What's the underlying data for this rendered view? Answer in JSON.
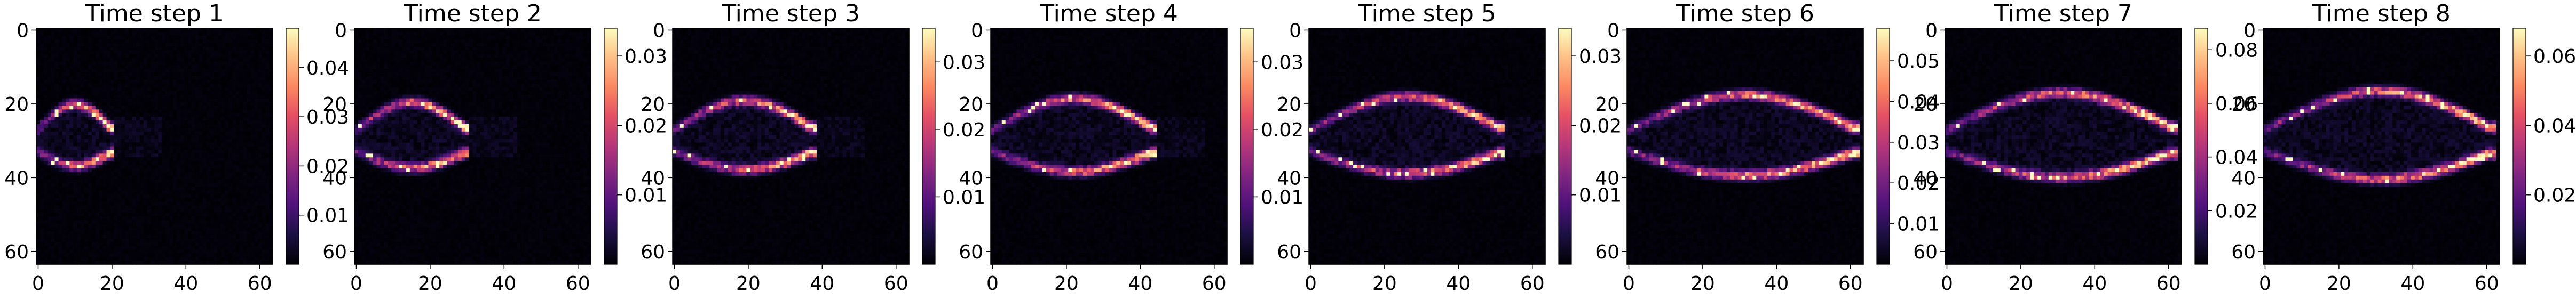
{
  "figure": {
    "colormap": "magma",
    "background": "#ffffff"
  },
  "chart_data": [
    {
      "type": "heatmap",
      "title": "Time step 1",
      "x_ticks": [
        "0",
        "20",
        "40",
        "60"
      ],
      "y_ticks": [
        "0",
        "20",
        "40",
        "60"
      ],
      "grid_size": 64,
      "colorbar_ticks": [
        "0.01",
        "0.02",
        "0.03",
        "0.04"
      ],
      "colorbar_range": [
        0,
        0.048
      ]
    },
    {
      "type": "heatmap",
      "title": "Time step 2",
      "x_ticks": [
        "0",
        "20",
        "40",
        "60"
      ],
      "y_ticks": [
        "0",
        "20",
        "40",
        "60"
      ],
      "grid_size": 64,
      "colorbar_ticks": [
        "0.01",
        "0.02",
        "0.03"
      ],
      "colorbar_range": [
        0,
        0.034
      ]
    },
    {
      "type": "heatmap",
      "title": "Time step 3",
      "x_ticks": [
        "0",
        "20",
        "40",
        "60"
      ],
      "y_ticks": [
        "0",
        "20",
        "40",
        "60"
      ],
      "grid_size": 64,
      "colorbar_ticks": [
        "0.01",
        "0.02",
        "0.03"
      ],
      "colorbar_range": [
        0,
        0.035
      ]
    },
    {
      "type": "heatmap",
      "title": "Time step 4",
      "x_ticks": [
        "0",
        "20",
        "40",
        "60"
      ],
      "y_ticks": [
        "0",
        "20",
        "40",
        "60"
      ],
      "grid_size": 64,
      "colorbar_ticks": [
        "0.01",
        "0.02",
        "0.03"
      ],
      "colorbar_range": [
        0,
        0.035
      ]
    },
    {
      "type": "heatmap",
      "title": "Time step 5",
      "x_ticks": [
        "0",
        "20",
        "40",
        "60"
      ],
      "y_ticks": [
        "0",
        "20",
        "40",
        "60"
      ],
      "grid_size": 64,
      "colorbar_ticks": [
        "0.01",
        "0.02",
        "0.03"
      ],
      "colorbar_range": [
        0,
        0.034
      ]
    },
    {
      "type": "heatmap",
      "title": "Time step 6",
      "x_ticks": [
        "0",
        "20",
        "40",
        "60"
      ],
      "y_ticks": [
        "0",
        "20",
        "40",
        "60"
      ],
      "grid_size": 64,
      "colorbar_ticks": [
        "0.01",
        "0.02",
        "0.03",
        "0.04",
        "0.05"
      ],
      "colorbar_range": [
        0,
        0.058
      ]
    },
    {
      "type": "heatmap",
      "title": "Time step 7",
      "x_ticks": [
        "0",
        "20",
        "40",
        "60"
      ],
      "y_ticks": [
        "0",
        "20",
        "40",
        "60"
      ],
      "grid_size": 64,
      "colorbar_ticks": [
        "0.02",
        "0.04",
        "0.06",
        "0.08"
      ],
      "colorbar_range": [
        0,
        0.088
      ]
    },
    {
      "type": "heatmap",
      "title": "Time step 8",
      "x_ticks": [
        "0",
        "20",
        "40",
        "60"
      ],
      "y_ticks": [
        "0",
        "20",
        "40",
        "60"
      ],
      "grid_size": 64,
      "colorbar_ticks": [
        "0.02",
        "0.04",
        "0.06"
      ],
      "colorbar_range": [
        0,
        0.068
      ]
    }
  ]
}
